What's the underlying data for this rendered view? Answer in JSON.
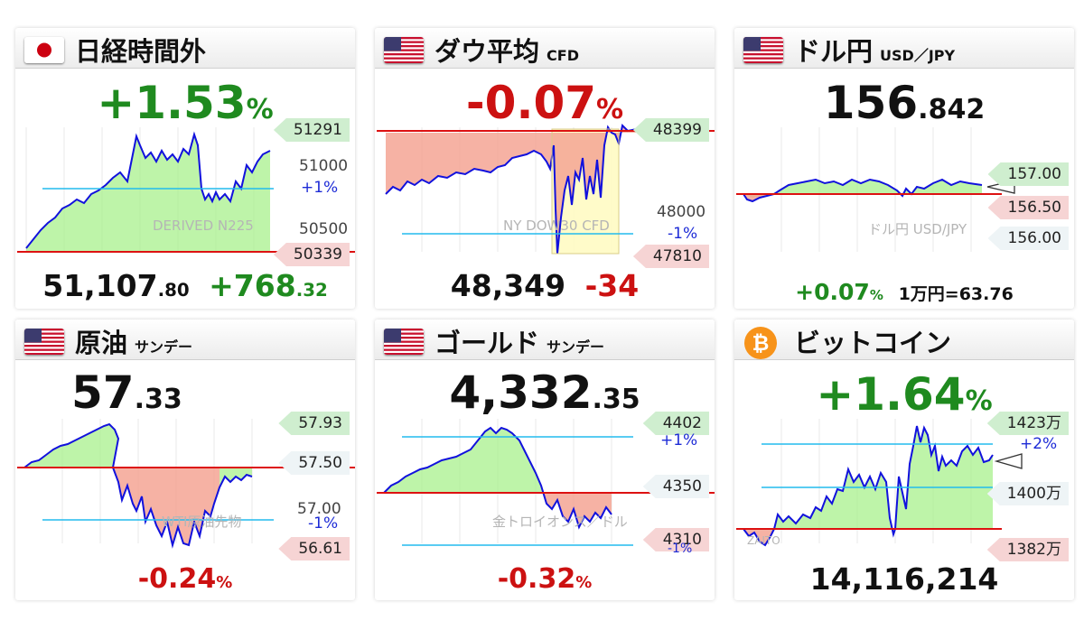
{
  "colors": {
    "up": "#1f8a1f",
    "down": "#cc1111",
    "line": "#1111dd",
    "up_fill": "#a8f08c",
    "down_fill": "#f5a594",
    "base": "#dd1111",
    "guide": "#22bbee"
  },
  "nikkei": {
    "title": "日経時間外",
    "flag": "japan-flag-icon",
    "change_int": "+1.53",
    "change_unit": "%",
    "price_int": "51,107",
    "price_dec": ".80",
    "diff_int": "+768",
    "diff_dec": ".32",
    "tag_high": "51291",
    "tag_low": "50339",
    "level_top": "51000",
    "level_pct": "+1%",
    "level_mid": "50500",
    "watermark": "DERIVED N225"
  },
  "dow": {
    "title": "ダウ平均",
    "sub": "CFD",
    "flag": "usa-flag-icon",
    "change_int": "-0.07",
    "change_unit": "%",
    "price": "48,349",
    "diff": "-34",
    "tag_high": "48399",
    "tag_low": "47810",
    "level_mid": "48000",
    "level_pct": "-1%",
    "watermark": "NY DOW30 CFD"
  },
  "usdjpy": {
    "title": "ドル円",
    "sub": "USD／JPY",
    "flag": "usa-flag-icon",
    "price_int": "156",
    "price_dec": ".842",
    "tag_high": "157.00",
    "tag_low": "156.50",
    "level_low": "156.00",
    "watermark": "ドル円 USD/JPY",
    "change_int": "+0.07",
    "change_unit": "%",
    "note": "1万円=63.76"
  },
  "oil": {
    "title": "原油",
    "sub": "サンデー",
    "flag": "usa-flag-icon",
    "price_int": "57",
    "price_dec": ".33",
    "tag_high": "57.93",
    "level_mid": "57.50",
    "level_low": "57.00",
    "level_pct": "-1%",
    "tag_low": "56.61",
    "watermark": "WTI原油先物",
    "change_int": "-0.24",
    "change_unit": "%"
  },
  "gold": {
    "title": "ゴールド",
    "sub": "サンデー",
    "flag": "usa-flag-icon",
    "price_int": "4,332",
    "price_dec": ".35",
    "tag_high": "4402",
    "level_pct_top": "+1%",
    "level_mid": "4350",
    "tag_low": "4310",
    "level_pct_bottom": "-1%",
    "watermark": "金トロイオンス／ドル",
    "change_int": "-0.32",
    "change_unit": "%"
  },
  "bitcoin": {
    "title": "ビットコイン",
    "icon": "bitcoin-icon",
    "change_int": "+1.64",
    "change_unit": "%",
    "tag_high": "1423万",
    "level_pct": "+2%",
    "level_mid": "1400万",
    "tag_low": "1382万",
    "watermark": "ZAITO",
    "price": "14,116,214"
  }
}
